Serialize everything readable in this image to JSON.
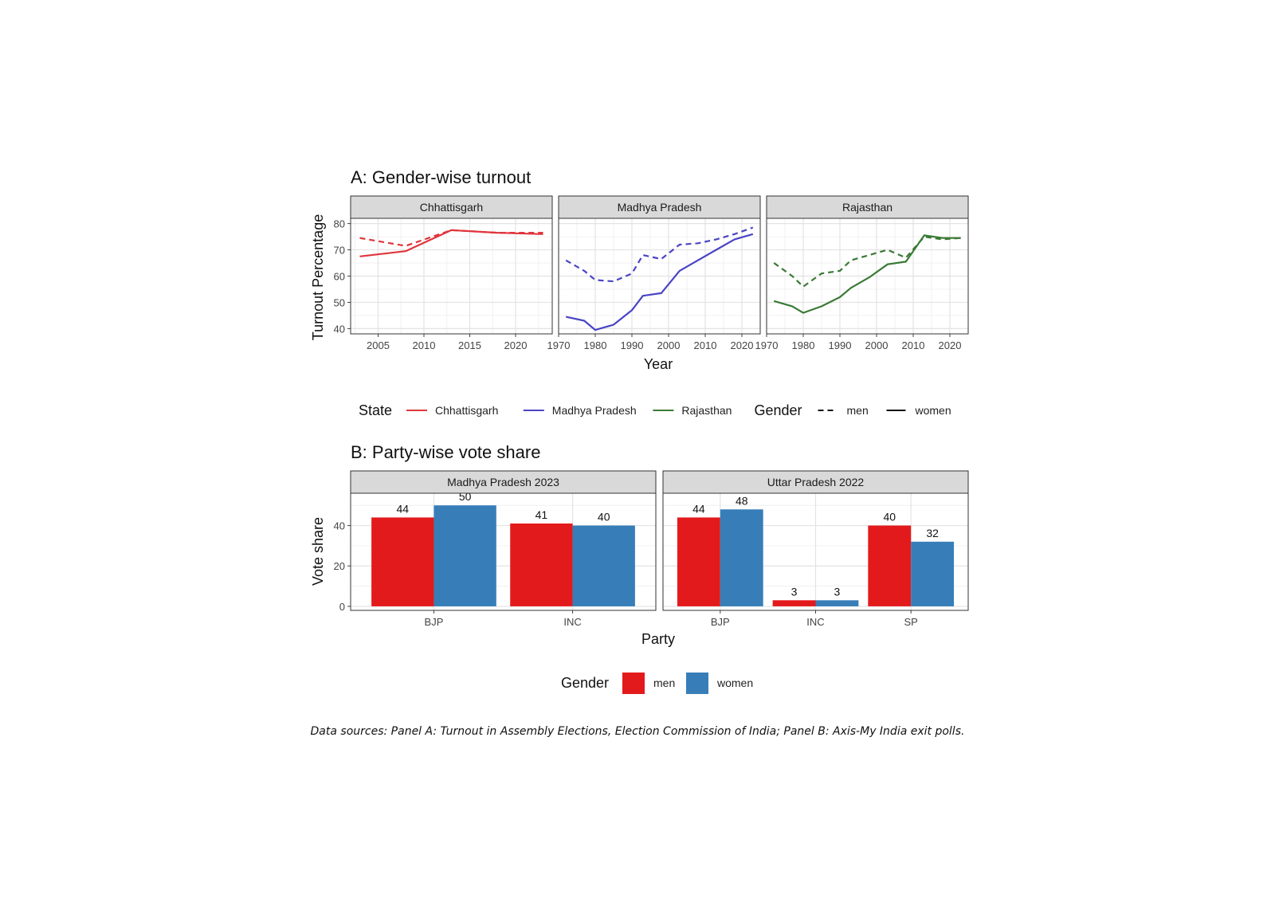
{
  "panel_a": {
    "title": "A: Gender-wise turnout",
    "xlabel": "Year",
    "ylabel": "Turnout Percentage",
    "yticks": [
      40,
      50,
      60,
      70,
      80
    ],
    "legend": {
      "state_title": "State",
      "states": [
        {
          "name": "Chhattisgarh",
          "color": "#e0353d"
        },
        {
          "name": "Madhya Pradesh",
          "color": "#4a44c4"
        },
        {
          "name": "Rajasthan",
          "color": "#3a7a35"
        }
      ],
      "gender_title": "Gender",
      "genders": [
        {
          "name": "men",
          "linestyle": "dashed"
        },
        {
          "name": "women",
          "linestyle": "solid"
        }
      ]
    }
  },
  "panel_b": {
    "title": "B: Party-wise vote share",
    "xlabel": "Party",
    "ylabel": "Vote share",
    "yticks": [
      0,
      20,
      40
    ],
    "legend": {
      "title": "Gender",
      "items": [
        {
          "name": "men",
          "color": "#e31a1c"
        },
        {
          "name": "women",
          "color": "#377eb8"
        }
      ]
    }
  },
  "source_note": "Data sources: Panel A: Turnout in Assembly Elections, Election Commission of India; Panel B: Axis-My India exit polls.",
  "chart_data": [
    {
      "type": "line",
      "title": "A: Gender-wise turnout",
      "xlabel": "Year",
      "ylabel": "Turnout Percentage",
      "ylim": [
        38,
        82
      ],
      "facets": [
        {
          "name": "Chhattisgarh",
          "color": "#e0353d",
          "xlim": [
            2002,
            2024
          ],
          "xticks": [
            2005,
            2010,
            2015,
            2020
          ],
          "series": [
            {
              "name": "men",
              "x": [
                2003,
                2008,
                2013,
                2018,
                2023
              ],
              "y": [
                74.5,
                71.5,
                77.5,
                76.5,
                76.5
              ]
            },
            {
              "name": "women",
              "x": [
                2003,
                2008,
                2013,
                2018,
                2023
              ],
              "y": [
                67.5,
                69.5,
                77.5,
                76.5,
                76
              ]
            }
          ]
        },
        {
          "name": "Madhya Pradesh",
          "color": "#4a44c4",
          "xlim": [
            1970,
            2025
          ],
          "xticks": [
            1970,
            1980,
            1990,
            2000,
            2010,
            2020
          ],
          "series": [
            {
              "name": "men",
              "x": [
                1972,
                1977,
                1980,
                1985,
                1990,
                1993,
                1998,
                2003,
                2008,
                2013,
                2018,
                2023
              ],
              "y": [
                66,
                62,
                58.5,
                58,
                61,
                68,
                66.5,
                72,
                72.5,
                74,
                76,
                78.5
              ]
            },
            {
              "name": "women",
              "x": [
                1972,
                1977,
                1980,
                1985,
                1990,
                1993,
                1998,
                2003,
                2008,
                2013,
                2018,
                2023
              ],
              "y": [
                44.5,
                43,
                39.5,
                41.5,
                47,
                52.5,
                53.5,
                62,
                66,
                70,
                74,
                76
              ]
            }
          ]
        },
        {
          "name": "Rajasthan",
          "color": "#3a7a35",
          "xlim": [
            1970,
            2025
          ],
          "xticks": [
            1970,
            1980,
            1990,
            2000,
            2010,
            2020
          ],
          "series": [
            {
              "name": "men",
              "x": [
                1972,
                1977,
                1980,
                1985,
                1990,
                1993,
                1998,
                2003,
                2008,
                2013,
                2018,
                2023
              ],
              "y": [
                65,
                60,
                56,
                61,
                62,
                66,
                68,
                70,
                67,
                75,
                74,
                74.5
              ]
            },
            {
              "name": "women",
              "x": [
                1972,
                1977,
                1980,
                1985,
                1990,
                1993,
                1998,
                2003,
                2008,
                2013,
                2018,
                2023
              ],
              "y": [
                50.5,
                48.5,
                46,
                48.5,
                52,
                55.5,
                59.5,
                64.5,
                65.5,
                75.5,
                74.5,
                74.5
              ]
            }
          ]
        }
      ]
    },
    {
      "type": "bar",
      "title": "B: Party-wise vote share",
      "xlabel": "Party",
      "ylabel": "Vote share",
      "ylim": [
        -2,
        56
      ],
      "facets": [
        {
          "name": "Madhya Pradesh 2023",
          "categories": [
            "BJP",
            "INC"
          ],
          "series": [
            {
              "name": "men",
              "values": [
                44,
                41
              ]
            },
            {
              "name": "women",
              "values": [
                50,
                40
              ]
            }
          ]
        },
        {
          "name": "Uttar Pradesh 2022",
          "categories": [
            "BJP",
            "INC",
            "SP"
          ],
          "series": [
            {
              "name": "men",
              "values": [
                44,
                3,
                40
              ]
            },
            {
              "name": "women",
              "values": [
                48,
                3,
                32
              ]
            }
          ]
        }
      ]
    }
  ]
}
